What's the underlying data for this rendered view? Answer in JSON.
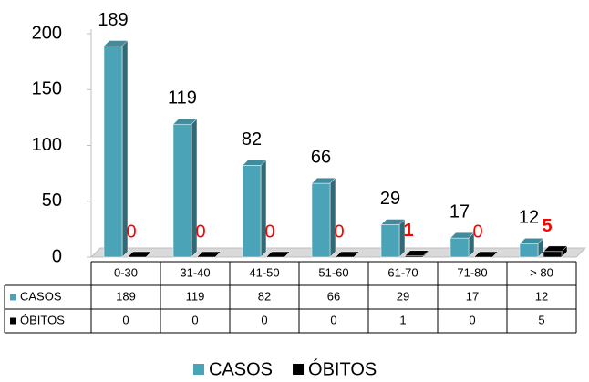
{
  "chart_data": {
    "type": "bar3d",
    "categories": [
      "0-30",
      "31-40",
      "41-50",
      "51-60",
      "61-70",
      "71-80",
      "> 80"
    ],
    "series": [
      {
        "name": "CASOS",
        "color": "#4ba3b7",
        "label_color": "#000000",
        "values": [
          189,
          119,
          82,
          66,
          29,
          17,
          12
        ]
      },
      {
        "name": "ÓBITOS",
        "color": "#000000",
        "label_color": "#ff0000",
        "values": [
          0,
          0,
          0,
          0,
          1,
          0,
          5
        ]
      }
    ],
    "ylim": [
      0,
      200
    ],
    "yticks": [
      0,
      50,
      100,
      150,
      200
    ],
    "grid": false,
    "legend": "bottom",
    "data_table": true
  }
}
